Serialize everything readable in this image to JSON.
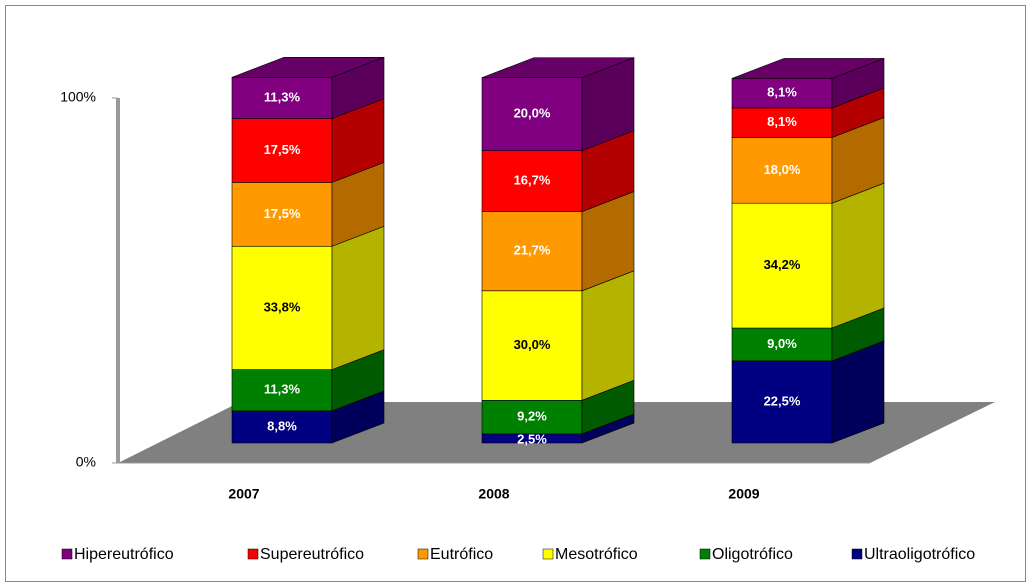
{
  "chart_data": {
    "type": "bar3d_stacked",
    "categories": [
      "2007",
      "2008",
      "2009"
    ],
    "series": [
      {
        "name": "Hipereutrófico",
        "color": "#800080",
        "values": [
          11.3,
          20.0,
          8.1
        ],
        "value_labels": [
          "11,3%",
          "20,0%",
          "8,1%"
        ]
      },
      {
        "name": "Supereutrófico",
        "color": "#ff0000",
        "values": [
          17.5,
          16.7,
          8.1
        ],
        "value_labels": [
          "17,5%",
          "16,7%",
          "8,1%"
        ]
      },
      {
        "name": "Eutrófico",
        "color": "#ff9900",
        "values": [
          17.5,
          21.7,
          18.0
        ],
        "value_labels": [
          "17,5%",
          "21,7%",
          "18,0%"
        ]
      },
      {
        "name": "Mesotrófico",
        "color": "#ffff00",
        "values": [
          33.8,
          30.0,
          34.2
        ],
        "value_labels": [
          "33,8%",
          "30,0%",
          "34,2%"
        ]
      },
      {
        "name": "Oligotrófico",
        "color": "#008000",
        "values": [
          11.3,
          9.2,
          9.0
        ],
        "value_labels": [
          "11,3%",
          "9,2%",
          "9,0%"
        ]
      },
      {
        "name": "Ultraoligotrófico",
        "color": "#000080",
        "values": [
          8.8,
          2.5,
          22.5
        ],
        "value_labels": [
          "8,8%",
          "2,5%",
          "22,5%"
        ]
      }
    ],
    "ylim": [
      0,
      100
    ],
    "yticks": [
      {
        "value": 0,
        "label": "0%"
      },
      {
        "value": 100,
        "label": "100%"
      }
    ],
    "legend": "bottom"
  }
}
